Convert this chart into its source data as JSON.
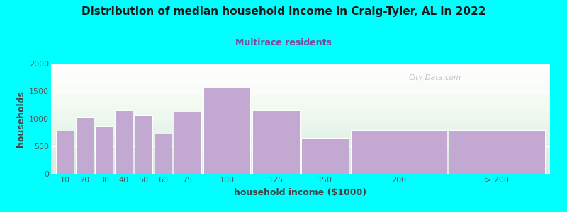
{
  "title": "Distribution of median household income in Craig-Tyler, AL in 2022",
  "subtitle": "Multirace residents",
  "xlabel": "household income ($1000)",
  "ylabel": "households",
  "background_color": "#00FFFF",
  "bar_color": "#C3A8D1",
  "bar_edge_color": "#ffffff",
  "categories": [
    "10",
    "20",
    "30",
    "40",
    "50",
    "60",
    "75",
    "100",
    "125",
    "150",
    "200",
    "> 200"
  ],
  "values": [
    780,
    1020,
    860,
    1150,
    1060,
    730,
    1130,
    1570,
    1160,
    660,
    790,
    790
  ],
  "left_edges": [
    0,
    10,
    20,
    30,
    40,
    50,
    60,
    75,
    100,
    125,
    150,
    200
  ],
  "widths": [
    10,
    10,
    10,
    10,
    10,
    10,
    15,
    25,
    25,
    25,
    50,
    50
  ],
  "ylim": [
    0,
    2000
  ],
  "yticks": [
    0,
    500,
    1000,
    1500,
    2000
  ],
  "title_fontsize": 11,
  "subtitle_fontsize": 9,
  "label_fontsize": 9,
  "tick_fontsize": 8,
  "watermark": "City-Data.com"
}
